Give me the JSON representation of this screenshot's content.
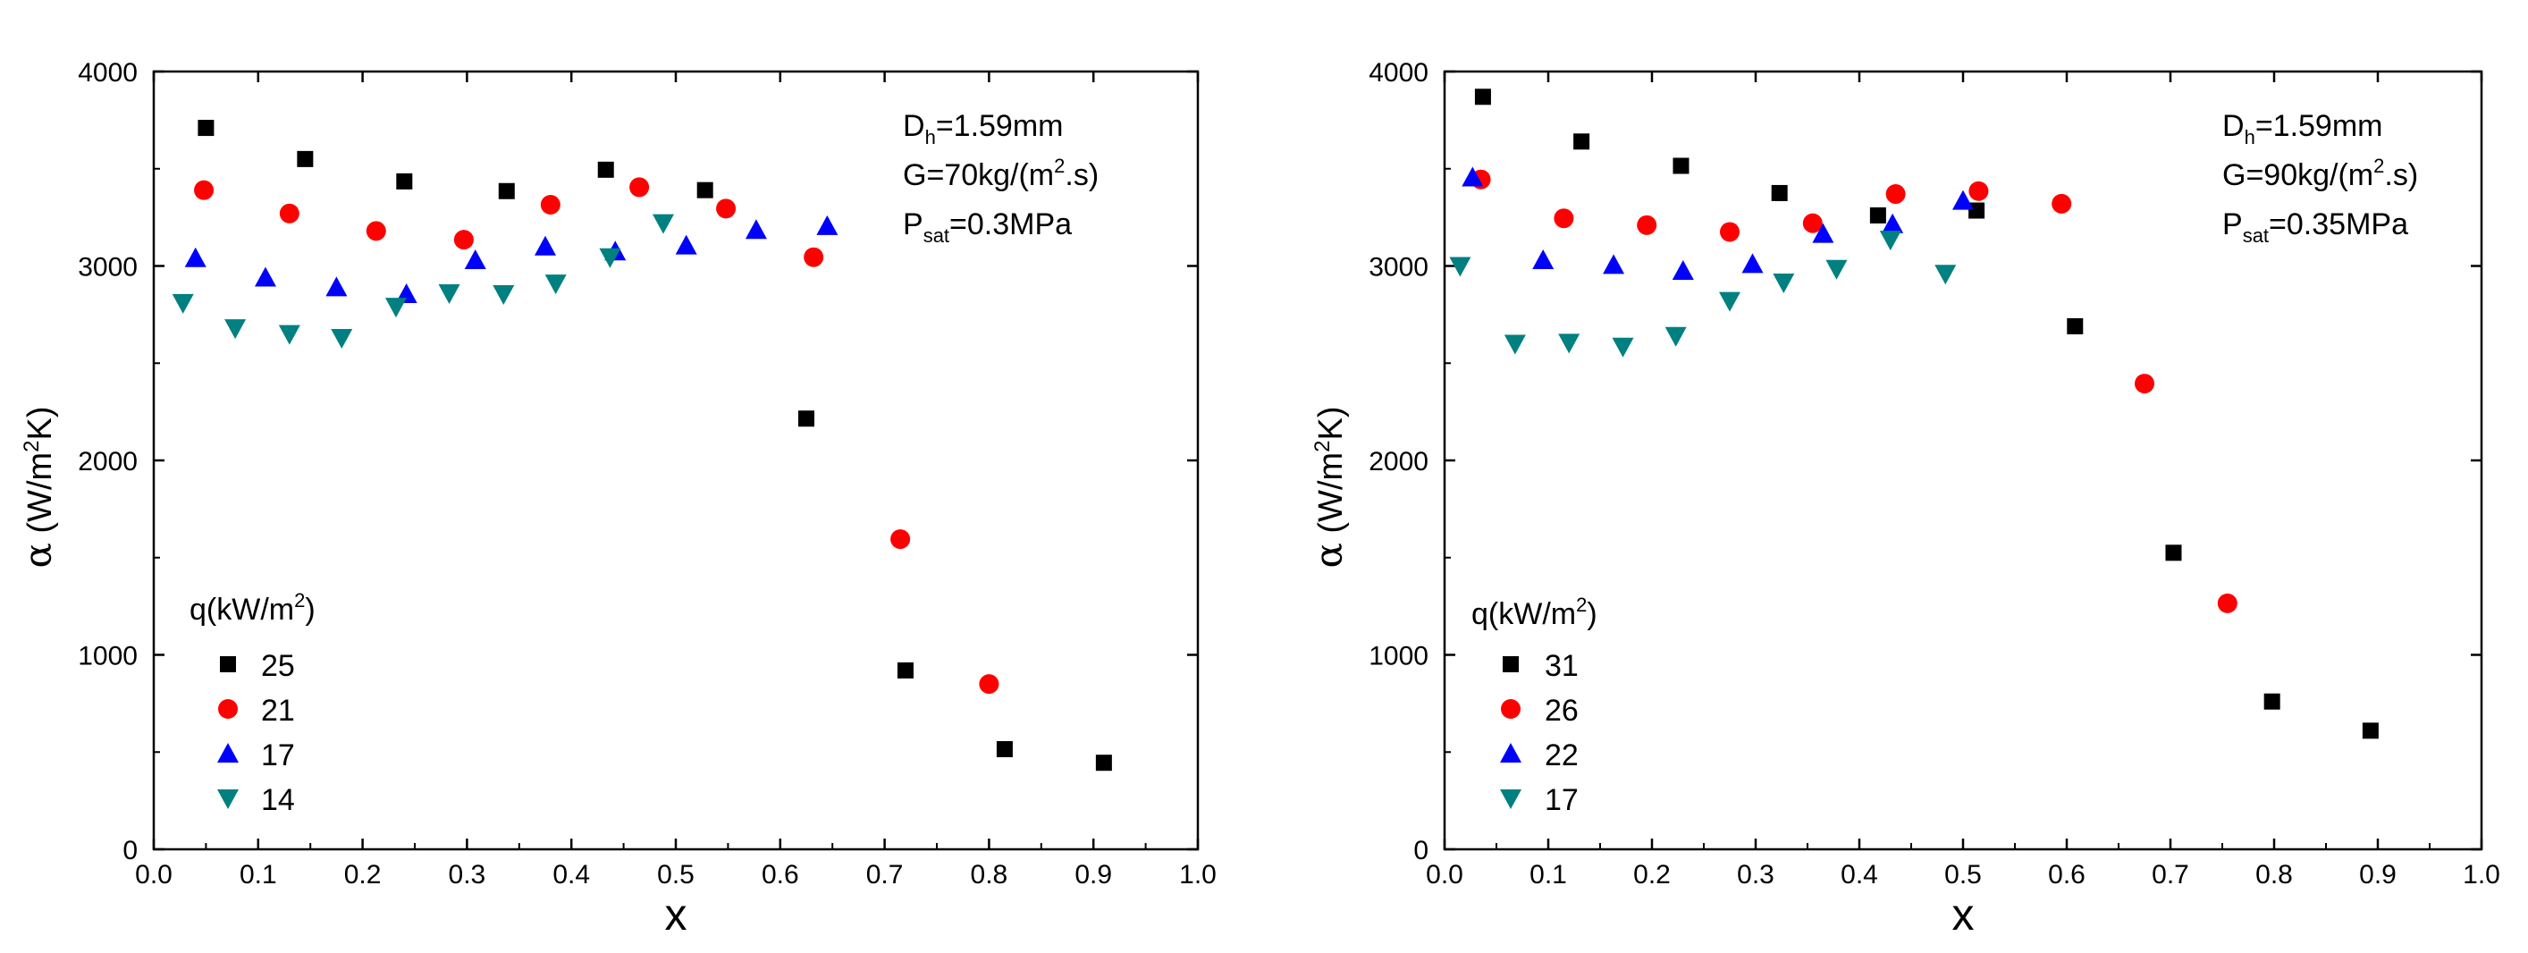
{
  "chart_data": [
    {
      "type": "scatter",
      "title": "",
      "xlabel": "x",
      "ylabel_symbol": "α",
      "ylabel_unit_pre": "(W/m",
      "ylabel_unit_sup": "2",
      "ylabel_unit_post": "K)",
      "xlim": [
        0.0,
        1.0
      ],
      "ylim": [
        0,
        4000
      ],
      "xticks": [
        "0.0",
        "0.1",
        "0.2",
        "0.3",
        "0.4",
        "0.5",
        "0.6",
        "0.7",
        "0.8",
        "0.9",
        "1.0"
      ],
      "yticks": [
        "0",
        "1000",
        "2000",
        "3000",
        "4000"
      ],
      "grid": false,
      "annotation": [
        {
          "base": "D",
          "sub": "h",
          "sup": "",
          "rest": "=1.59mm"
        },
        {
          "base": "G=70kg/(m",
          "sub": "",
          "sup": "2",
          "rest": ".s)"
        },
        {
          "base": "P",
          "sub": "sat",
          "sup": "",
          "rest": "=0.3MPa"
        }
      ],
      "legend_title_pre": "q(kW/m",
      "legend_title_sup": "2",
      "legend_title_post": ")",
      "legend_placement": "lower-left",
      "series": [
        {
          "name": "25",
          "marker": "square",
          "color": "#000000",
          "points": [
            [
              0.05,
              3710
            ],
            [
              0.145,
              3550
            ],
            [
              0.24,
              3435
            ],
            [
              0.338,
              3385
            ],
            [
              0.433,
              3495
            ],
            [
              0.528,
              3390
            ],
            [
              0.625,
              2215
            ],
            [
              0.72,
              920
            ],
            [
              0.815,
              515
            ],
            [
              0.91,
              445
            ]
          ]
        },
        {
          "name": "21",
          "marker": "circle",
          "color": "#ff0000",
          "points": [
            [
              0.048,
              3390
            ],
            [
              0.13,
              3270
            ],
            [
              0.213,
              3180
            ],
            [
              0.297,
              3135
            ],
            [
              0.38,
              3315
            ],
            [
              0.465,
              3405
            ],
            [
              0.548,
              3295
            ],
            [
              0.632,
              3045
            ],
            [
              0.715,
              1595
            ],
            [
              0.8,
              850
            ]
          ]
        },
        {
          "name": "17",
          "marker": "triangle-up",
          "color": "#0000ff",
          "points": [
            [
              0.04,
              3040
            ],
            [
              0.107,
              2940
            ],
            [
              0.175,
              2890
            ],
            [
              0.242,
              2855
            ],
            [
              0.308,
              3030
            ],
            [
              0.375,
              3100
            ],
            [
              0.442,
              3075
            ],
            [
              0.51,
              3105
            ],
            [
              0.577,
              3185
            ],
            [
              0.645,
              3205
            ]
          ]
        },
        {
          "name": "14",
          "marker": "triangle-down",
          "color": "#008080",
          "points": [
            [
              0.028,
              2810
            ],
            [
              0.078,
              2680
            ],
            [
              0.13,
              2650
            ],
            [
              0.18,
              2630
            ],
            [
              0.232,
              2790
            ],
            [
              0.283,
              2860
            ],
            [
              0.335,
              2855
            ],
            [
              0.385,
              2910
            ],
            [
              0.437,
              3045
            ],
            [
              0.488,
              3220
            ]
          ]
        }
      ]
    },
    {
      "type": "scatter",
      "title": "",
      "xlabel": "x",
      "ylabel_symbol": "α",
      "ylabel_unit_pre": "(W/m",
      "ylabel_unit_sup": "2",
      "ylabel_unit_post": "K)",
      "xlim": [
        0.0,
        1.0
      ],
      "ylim": [
        0,
        4000
      ],
      "xticks": [
        "0.0",
        "0.1",
        "0.2",
        "0.3",
        "0.4",
        "0.5",
        "0.6",
        "0.7",
        "0.8",
        "0.9",
        "1.0"
      ],
      "yticks": [
        "0",
        "1000",
        "2000",
        "3000",
        "4000"
      ],
      "grid": false,
      "annotation": [
        {
          "base": "D",
          "sub": "h",
          "sup": "",
          "rest": "=1.59mm"
        },
        {
          "base": "G=90kg/(m",
          "sub": "",
          "sup": "2",
          "rest": ".s)"
        },
        {
          "base": "P",
          "sub": "sat",
          "sup": "",
          "rest": "=0.35MPa"
        }
      ],
      "legend_title_pre": "q(kW/m",
      "legend_title_sup": "2",
      "legend_title_post": ")",
      "legend_placement": "lower-left",
      "series": [
        {
          "name": "31",
          "marker": "square",
          "color": "#000000",
          "points": [
            [
              0.037,
              3870
            ],
            [
              0.132,
              3640
            ],
            [
              0.228,
              3515
            ],
            [
              0.323,
              3375
            ],
            [
              0.418,
              3260
            ],
            [
              0.513,
              3285
            ],
            [
              0.608,
              2690
            ],
            [
              0.703,
              1525
            ],
            [
              0.798,
              760
            ],
            [
              0.893,
              610
            ]
          ]
        },
        {
          "name": "26",
          "marker": "circle",
          "color": "#ff0000",
          "points": [
            [
              0.035,
              3445
            ],
            [
              0.115,
              3245
            ],
            [
              0.195,
              3210
            ],
            [
              0.275,
              3175
            ],
            [
              0.355,
              3220
            ],
            [
              0.435,
              3370
            ],
            [
              0.515,
              3385
            ],
            [
              0.595,
              3320
            ],
            [
              0.675,
              2395
            ],
            [
              0.755,
              1265
            ]
          ]
        },
        {
          "name": "22",
          "marker": "triangle-up",
          "color": "#0000ff",
          "points": [
            [
              0.027,
              3455
            ],
            [
              0.095,
              3030
            ],
            [
              0.163,
              3005
            ],
            [
              0.23,
              2975
            ],
            [
              0.297,
              3010
            ],
            [
              0.365,
              3165
            ],
            [
              0.432,
              3215
            ],
            [
              0.5,
              3335
            ]
          ]
        },
        {
          "name": "17",
          "marker": "triangle-down",
          "color": "#008080",
          "points": [
            [
              0.015,
              3000
            ],
            [
              0.068,
              2600
            ],
            [
              0.12,
              2605
            ],
            [
              0.172,
              2585
            ],
            [
              0.223,
              2640
            ],
            [
              0.275,
              2820
            ],
            [
              0.327,
              2915
            ],
            [
              0.378,
              2985
            ],
            [
              0.43,
              3135
            ],
            [
              0.483,
              2960
            ]
          ]
        }
      ]
    }
  ]
}
